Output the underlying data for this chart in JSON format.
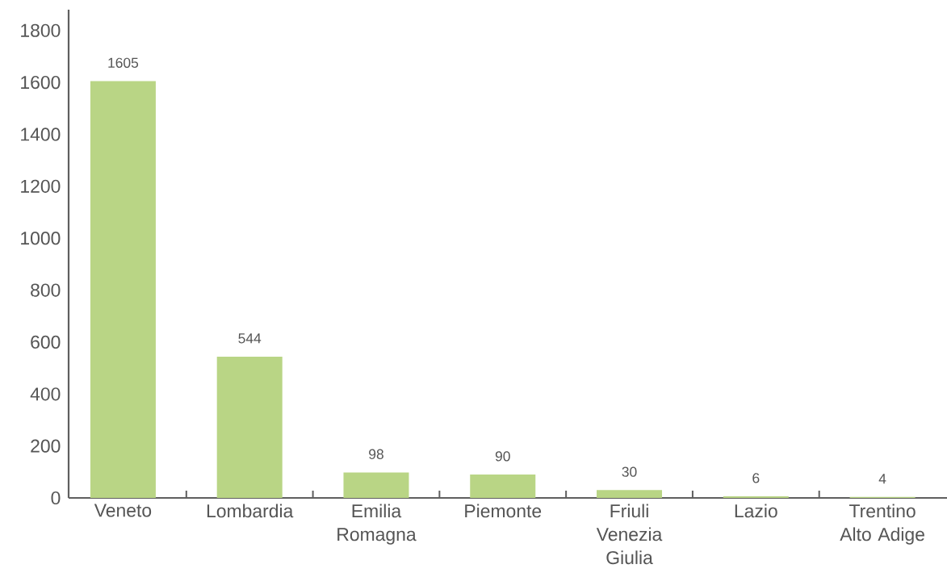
{
  "chart_data": {
    "type": "bar",
    "categories": [
      "Veneto",
      "Lombardia",
      "Emilia Romagna",
      "Piemonte",
      "Friuli Venezia Giulia",
      "Lazio",
      "Trentino Alto Adige"
    ],
    "values": [
      1605,
      544,
      98,
      90,
      30,
      6,
      4
    ],
    "color": "#b9d585",
    "ylim": [
      0,
      1880
    ],
    "yticks": [
      0,
      200,
      400,
      600,
      800,
      1000,
      1200,
      1400,
      1600,
      1800
    ],
    "data_labels": true
  }
}
